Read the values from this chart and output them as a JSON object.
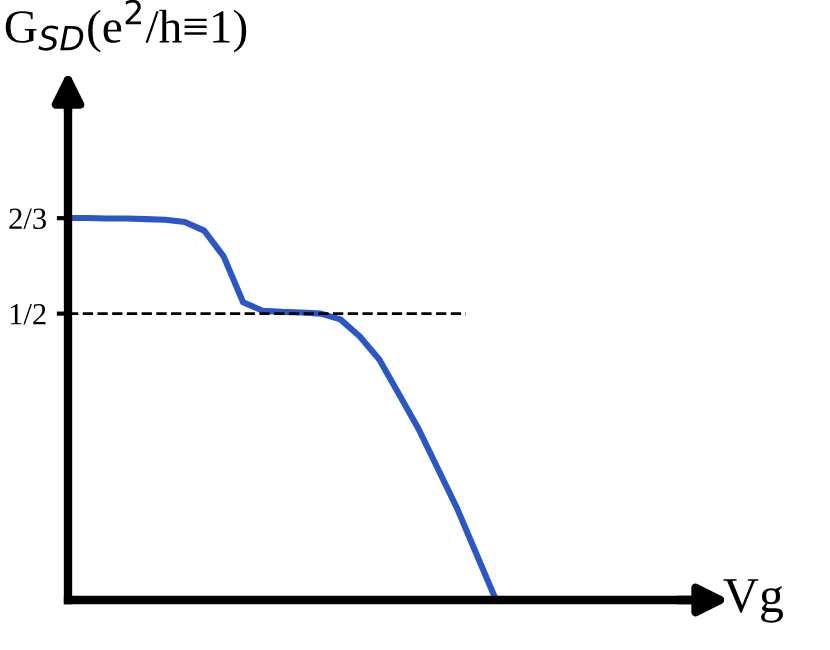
{
  "chart_data": {
    "type": "line",
    "ylabel": "G$_{SD}$(e$^{2}$/h≡1)",
    "xlabel": "Vg",
    "categories": [
      null,
      null,
      null,
      null,
      null,
      null,
      null,
      null,
      null,
      null,
      null,
      null,
      null,
      null,
      null,
      null,
      null,
      null,
      null,
      null,
      null,
      null,
      null
    ],
    "series": [
      {
        "color": "#2b57c4",
        "values": [
          0.667,
          0.667,
          0.666,
          0.666,
          0.665,
          0.664,
          0.66,
          0.645,
          0.6,
          0.52,
          0.505,
          0.503,
          0.502,
          0.5,
          0.49,
          0.46,
          0.42,
          0.36,
          0.3,
          0.23,
          0.16,
          0.08,
          0.0
        ]
      }
    ],
    "ylim": [
      0,
      0.88
    ],
    "yticks": [
      {
        "value": 0.6667,
        "label": "2/3"
      },
      {
        "value": 0.5,
        "label": "1/2"
      }
    ],
    "ref_lines": [
      {
        "axis": "y",
        "value": 0.5,
        "color": "#000000",
        "line_style": "dashed"
      }
    ],
    "tick_labels": "y",
    "grid": false,
    "legend": false,
    "marker": "none",
    "line_style": "solid"
  }
}
